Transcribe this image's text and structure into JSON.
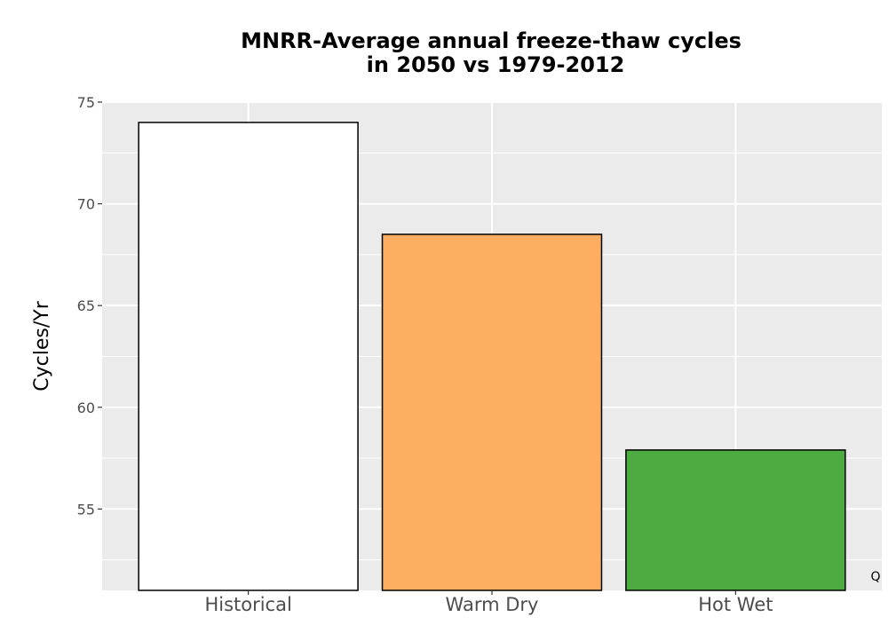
{
  "chart_data": {
    "type": "bar",
    "title": [
      "MNRR-Average annual freeze-thaw cycles",
      "in 2050 vs 1979-2012"
    ],
    "xlabel": "",
    "ylabel": "Cycles/Yr",
    "categories": [
      "Historical",
      "Warm Dry",
      "Hot Wet"
    ],
    "values": [
      74.0,
      68.5,
      57.9
    ],
    "colors": [
      "#ffffff",
      "#fdae61",
      "#4dac41"
    ],
    "bar_outline": "#000000",
    "ylim": [
      51,
      75
    ],
    "yticks": [
      55,
      60,
      65,
      70,
      75
    ],
    "ytick_labels": [
      "55",
      "60",
      "65",
      "70",
      "75"
    ],
    "grid": true,
    "legend": "none",
    "panel_background": "#ebebeb",
    "grid_color": "#ffffff"
  },
  "corner_mark": "Q"
}
